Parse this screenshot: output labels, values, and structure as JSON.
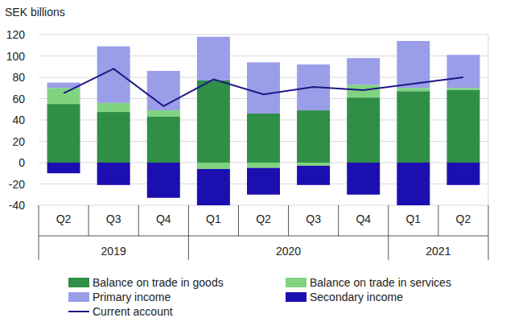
{
  "chart_data": {
    "type": "bar",
    "stacked": true,
    "grid": true,
    "y_label": "SEK billions",
    "categories": [
      "Q2",
      "Q3",
      "Q4",
      "Q1",
      "Q2",
      "Q3",
      "Q4",
      "Q1",
      "Q2"
    ],
    "category_years": [
      "2019",
      "2019",
      "2019",
      "2020",
      "2020",
      "2020",
      "2020",
      "2021",
      "2021"
    ],
    "ylim": [
      -40,
      120
    ],
    "yticks": [
      -40,
      -20,
      0,
      20,
      40,
      60,
      80,
      100,
      120
    ],
    "series": [
      {
        "name": "Balance on trade in goods",
        "type": "bar",
        "color": "#2f8f46",
        "values": [
          55,
          47.5,
          43,
          77,
          46,
          49,
          61,
          67,
          68
        ]
      },
      {
        "name": "Balance on trade in services",
        "type": "bar",
        "color": "#80d480",
        "values": [
          15,
          8.5,
          6,
          -6,
          -5,
          -3,
          12,
          3,
          2
        ]
      },
      {
        "name": "Primary income",
        "type": "bar",
        "color": "#9a9ee8",
        "values": [
          5,
          53,
          37,
          41,
          48,
          43,
          25,
          44,
          31
        ]
      },
      {
        "name": "Secondary income",
        "type": "bar",
        "color": "#1b0fb0",
        "values": [
          -10,
          -21,
          -33,
          -34,
          -25,
          -18,
          -30,
          -40,
          -21
        ]
      },
      {
        "name": "Current account",
        "type": "line",
        "color": "#1c1784",
        "values": [
          65,
          88,
          53,
          78,
          64,
          71,
          68,
          74,
          80
        ]
      }
    ]
  }
}
